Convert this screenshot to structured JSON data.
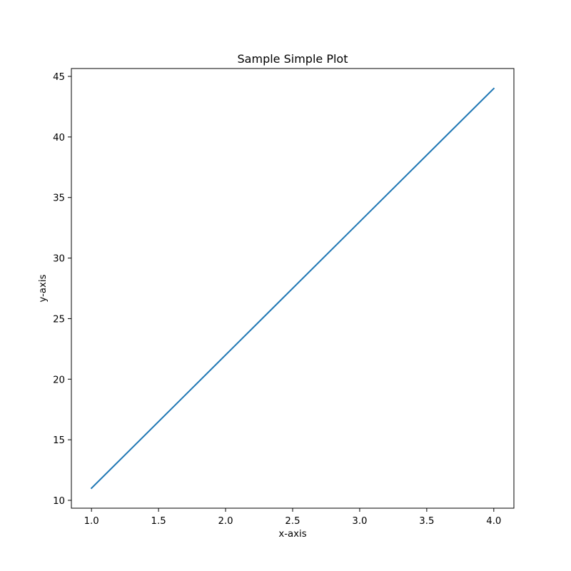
{
  "chart_data": {
    "type": "line",
    "title": "Sample Simple Plot",
    "xlabel": "x-axis",
    "ylabel": "y-axis",
    "x": [
      1.0,
      2.0,
      3.0,
      4.0
    ],
    "series": [
      {
        "values": [
          11,
          22,
          33,
          44
        ],
        "color": "#1f77b4"
      }
    ],
    "xlim": [
      0.85,
      4.15
    ],
    "ylim": [
      9.35,
      45.65
    ],
    "xticks": [
      1.0,
      1.5,
      2.0,
      2.5,
      3.0,
      3.5,
      4.0
    ],
    "xtick_labels": [
      "1.0",
      "1.5",
      "2.0",
      "2.5",
      "3.0",
      "3.5",
      "4.0"
    ],
    "yticks": [
      10,
      15,
      20,
      25,
      30,
      35,
      40,
      45
    ],
    "ytick_labels": [
      "10",
      "15",
      "20",
      "25",
      "30",
      "35",
      "40",
      "45"
    ],
    "grid": false,
    "legend": "none"
  }
}
